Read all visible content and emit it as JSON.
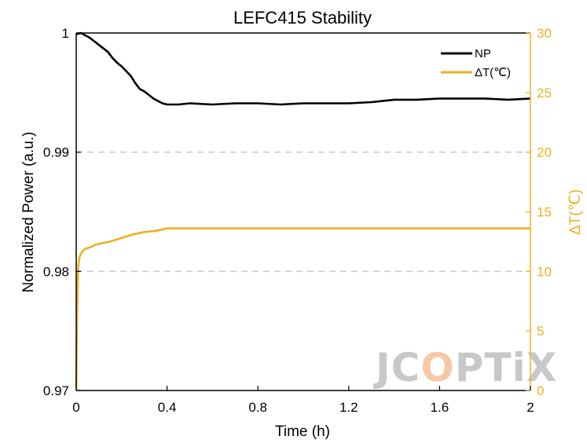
{
  "chart_data": {
    "type": "line",
    "title": "LEFC415 Stability",
    "xlabel": "Time (h)",
    "ylabel_left": "Normalized Power (a.u.)",
    "ylabel_right": "ΔT(℃)",
    "xlim": [
      0,
      2
    ],
    "ylim_left": [
      0.97,
      1
    ],
    "ylim_right": [
      0,
      30
    ],
    "x_ticks": [
      "0",
      "0.4",
      "0.8",
      "1.2",
      "1.6",
      "2"
    ],
    "y_left_ticks": [
      "0.97",
      "0.98",
      "0.99",
      "1"
    ],
    "y_right_ticks": [
      "0",
      "5",
      "10",
      "15",
      "20",
      "25",
      "30"
    ],
    "grid": "dashed horizontal at 0.98 and 0.99",
    "legend_position": "top-right",
    "series": [
      {
        "name": "NP",
        "color": "#000000",
        "axis": "left",
        "x": [
          0,
          0.02,
          0.04,
          0.06,
          0.08,
          0.1,
          0.12,
          0.14,
          0.16,
          0.18,
          0.2,
          0.22,
          0.24,
          0.26,
          0.28,
          0.3,
          0.32,
          0.34,
          0.36,
          0.38,
          0.4,
          0.45,
          0.5,
          0.6,
          0.7,
          0.8,
          0.9,
          1.0,
          1.1,
          1.2,
          1.3,
          1.4,
          1.5,
          1.6,
          1.7,
          1.8,
          1.9,
          2.0
        ],
        "y": [
          0.9999,
          1.0,
          0.9998,
          0.9996,
          0.9993,
          0.999,
          0.9987,
          0.9984,
          0.9979,
          0.9975,
          0.9972,
          0.9968,
          0.9964,
          0.9958,
          0.9953,
          0.9951,
          0.9948,
          0.9945,
          0.9943,
          0.9941,
          0.994,
          0.994,
          0.9941,
          0.994,
          0.9941,
          0.9941,
          0.994,
          0.9941,
          0.9941,
          0.9941,
          0.9942,
          0.9944,
          0.9944,
          0.9945,
          0.9945,
          0.9945,
          0.9944,
          0.9945
        ]
      },
      {
        "name": "ΔT(℃)",
        "color": "#EDB120",
        "axis": "right",
        "x": [
          0,
          0.002,
          0.004,
          0.006,
          0.008,
          0.01,
          0.015,
          0.02,
          0.03,
          0.04,
          0.06,
          0.08,
          0.1,
          0.15,
          0.2,
          0.25,
          0.3,
          0.35,
          0.4,
          0.5,
          0.6,
          0.8,
          1.0,
          1.2,
          1.4,
          1.6,
          1.8,
          2.0
        ],
        "y": [
          0.3,
          3.5,
          6.5,
          8.5,
          9.8,
          10.6,
          11.2,
          11.5,
          11.7,
          11.9,
          12.0,
          12.2,
          12.3,
          12.5,
          12.8,
          13.1,
          13.3,
          13.4,
          13.6,
          13.6,
          13.6,
          13.6,
          13.6,
          13.6,
          13.6,
          13.6,
          13.6,
          13.6
        ]
      }
    ]
  },
  "watermark": {
    "text_gray": "JC",
    "text_orange": "O",
    "text_gray2": "PTiX",
    "color_gray": "#C8C8C8",
    "color_orange": "#F5C8A8"
  }
}
